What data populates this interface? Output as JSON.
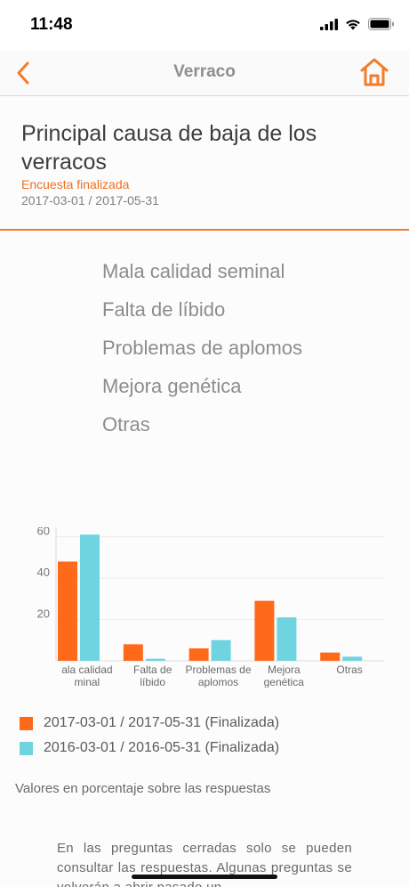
{
  "status_bar": {
    "time": "11:48"
  },
  "nav": {
    "title": "Verraco"
  },
  "header": {
    "title": "Principal causa de baja de los verracos",
    "status": "Encuesta finalizada",
    "date_range": "2017-03-01 / 2017-05-31"
  },
  "options": [
    "Mala calidad seminal",
    "Falta de líbido",
    "Problemas de aplomos",
    "Mejora genética",
    "Otras"
  ],
  "colors": {
    "accent": "#f47b2a",
    "series1": "#ff6a1a",
    "series2": "#70d4e0"
  },
  "chart_data": {
    "type": "bar",
    "categories": [
      "Mala calidad seminal",
      "Falta de líbido",
      "Problemas de aplomos",
      "Mejora genética",
      "Otras"
    ],
    "category_label_lines": [
      [
        "ala calidad",
        "minal"
      ],
      [
        "Falta de",
        "líbido"
      ],
      [
        "Problemas de",
        "aplomos"
      ],
      [
        "Mejora",
        "genética"
      ],
      [
        "Otras"
      ]
    ],
    "series": [
      {
        "name": "2017-03-01 / 2017-05-31 (Finalizada)",
        "values": [
          48,
          8,
          6,
          29,
          4
        ],
        "color": "#ff6a1a"
      },
      {
        "name": "2016-03-01 / 2016-05-31 (Finalizada)",
        "values": [
          61,
          1,
          10,
          21,
          2
        ],
        "color": "#70d4e0"
      }
    ],
    "y_ticks": [
      20,
      40,
      60
    ],
    "ylim": [
      0,
      62
    ],
    "grid": true,
    "legend_position": "bottom"
  },
  "legend": [
    {
      "label": "2017-03-01 / 2017-05-31 (Finalizada)"
    },
    {
      "label": "2016-03-01 / 2016-05-31 (Finalizada)"
    }
  ],
  "footnote": "Valores en porcentaje sobre las respuestas",
  "info_text": "En las preguntas cerradas solo se pueden consultar las respuestas. Algunas preguntas se volverán a abrir pasado un"
}
